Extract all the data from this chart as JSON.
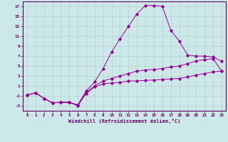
{
  "xlabel": "Windchill (Refroidissement éolien,°C)",
  "background_color": "#cce8e8",
  "grid_color": "#b0cccc",
  "line_color": "#990099",
  "xlim": [
    -0.5,
    23.5
  ],
  "ylim": [
    -4,
    18
  ],
  "yticks": [
    -3,
    -1,
    1,
    3,
    5,
    7,
    9,
    11,
    13,
    15,
    17
  ],
  "xticks": [
    0,
    1,
    2,
    3,
    4,
    5,
    6,
    7,
    8,
    9,
    10,
    11,
    12,
    13,
    14,
    15,
    16,
    17,
    18,
    19,
    20,
    21,
    22,
    23
  ],
  "series1_x": [
    0,
    1,
    2,
    3,
    4,
    5,
    6,
    7,
    8,
    9,
    10,
    11,
    12,
    13,
    14,
    15,
    16,
    17,
    18,
    19,
    20,
    21,
    22,
    23
  ],
  "series1_y": [
    -0.8,
    -0.4,
    -1.5,
    -2.4,
    -2.3,
    -2.3,
    -3.0,
    -0.5,
    0.8,
    1.4,
    1.6,
    1.7,
    2.0,
    2.0,
    2.1,
    2.2,
    2.3,
    2.4,
    2.5,
    2.8,
    3.2,
    3.5,
    3.8,
    4.0
  ],
  "series2_x": [
    0,
    1,
    2,
    3,
    4,
    5,
    6,
    7,
    8,
    9,
    10,
    11,
    12,
    13,
    14,
    15,
    16,
    17,
    18,
    19,
    20,
    21,
    22,
    23
  ],
  "series2_y": [
    -0.8,
    -0.4,
    -1.5,
    -2.4,
    -2.3,
    -2.3,
    -2.8,
    0.0,
    1.8,
    4.5,
    7.8,
    10.5,
    13.0,
    15.5,
    17.2,
    17.2,
    17.0,
    12.2,
    10.0,
    7.2,
    7.0,
    7.0,
    6.8,
    6.0
  ],
  "series3_x": [
    0,
    1,
    2,
    3,
    4,
    5,
    6,
    7,
    8,
    9,
    10,
    11,
    12,
    13,
    14,
    15,
    16,
    17,
    18,
    19,
    20,
    21,
    22,
    23
  ],
  "series3_y": [
    -0.8,
    -0.4,
    -1.5,
    -2.4,
    -2.3,
    -2.3,
    -2.9,
    -0.3,
    1.0,
    2.0,
    2.5,
    3.0,
    3.5,
    4.0,
    4.2,
    4.3,
    4.5,
    4.8,
    5.0,
    5.5,
    6.0,
    6.3,
    6.5,
    4.0
  ],
  "xlabel_fontsize": 5.0,
  "tick_fontsize": 4.2,
  "marker_size": 1.8,
  "line_width": 0.7
}
